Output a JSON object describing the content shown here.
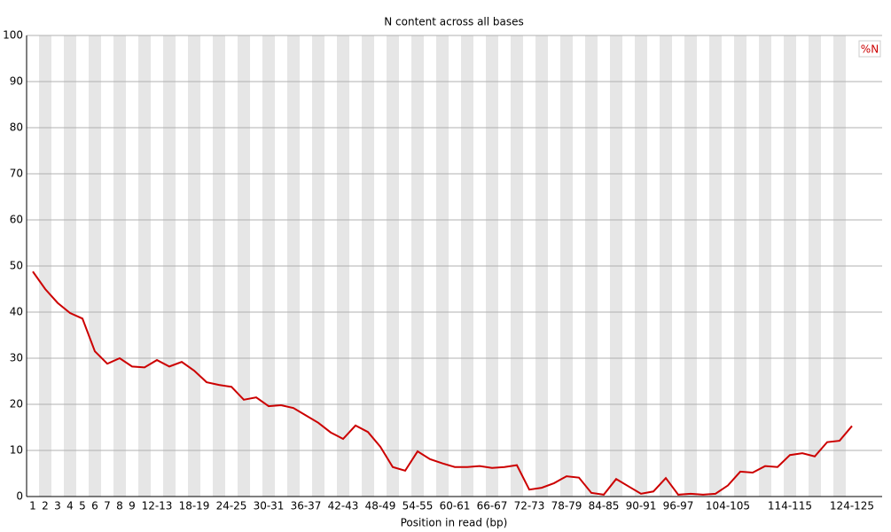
{
  "chart_data": {
    "type": "line",
    "title": "N content across all bases",
    "xlabel": "Position in read (bp)",
    "categories": [
      "1",
      "2",
      "3",
      "4",
      "5",
      "6",
      "7",
      "8",
      "9",
      null,
      "12-13",
      null,
      null,
      "18-19",
      null,
      null,
      "24-25",
      null,
      null,
      "30-31",
      null,
      null,
      "36-37",
      null,
      null,
      "42-43",
      null,
      null,
      "48-49",
      null,
      null,
      "54-55",
      null,
      null,
      "60-61",
      null,
      null,
      "66-67",
      null,
      null,
      "72-73",
      null,
      null,
      "78-79",
      null,
      null,
      "84-85",
      null,
      null,
      "90-91",
      null,
      null,
      "96-97",
      null,
      null,
      null,
      "104-105",
      null,
      null,
      null,
      null,
      "114-115",
      null,
      null,
      null,
      null,
      "124-125"
    ],
    "series": [
      {
        "name": "%N",
        "color": "#cc0000",
        "values": [
          48.8,
          45,
          42,
          39.8,
          38.6,
          31.5,
          28.8,
          30,
          28.2,
          28,
          29.6,
          28.2,
          29.2,
          27.3,
          24.8,
          24.2,
          23.8,
          21,
          21.5,
          19.6,
          19.8,
          19.2,
          17.6,
          16,
          13.9,
          12.5,
          15.4,
          14,
          10.8,
          6.4,
          5.6,
          9.8,
          8.1,
          7.2,
          6.4,
          6.4,
          6.6,
          6.2,
          6.4,
          6.8,
          1.5,
          1.9,
          2.9,
          4.4,
          4.1,
          0.8,
          0.4,
          3.8,
          2.2,
          0.6,
          1.1,
          4,
          0.4,
          0.6,
          0.4,
          0.6,
          2.4,
          5.4,
          5.2,
          6.6,
          6.4,
          9,
          9.4,
          8.7,
          11.8,
          12.1,
          15.3
        ]
      }
    ],
    "ylim": [
      0,
      100
    ],
    "yticks": [
      0,
      10,
      20,
      30,
      40,
      50,
      60,
      70,
      80,
      90,
      100
    ],
    "grid": true,
    "legend": "top-right"
  }
}
